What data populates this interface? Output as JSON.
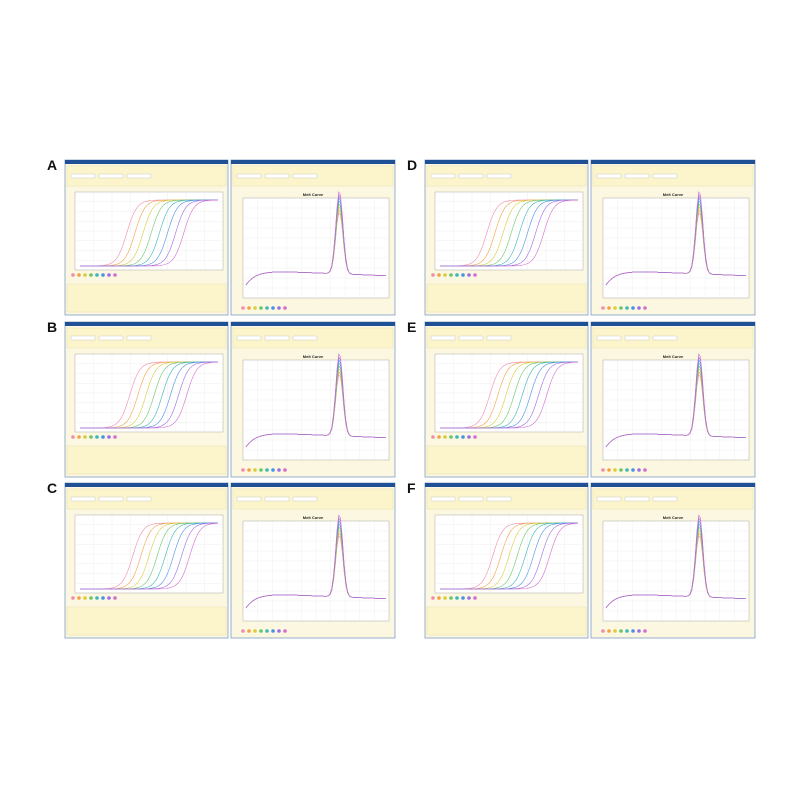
{
  "panels": [
    {
      "label": "A",
      "melt_title": "Melt Curve"
    },
    {
      "label": "B",
      "melt_title": "Melt Curve"
    },
    {
      "label": "C",
      "melt_title": "Melt Curve"
    },
    {
      "label": "D",
      "melt_title": "Melt Curve"
    },
    {
      "label": "E",
      "melt_title": "Melt Curve"
    },
    {
      "label": "F",
      "melt_title": "Melt Curve"
    }
  ]
}
